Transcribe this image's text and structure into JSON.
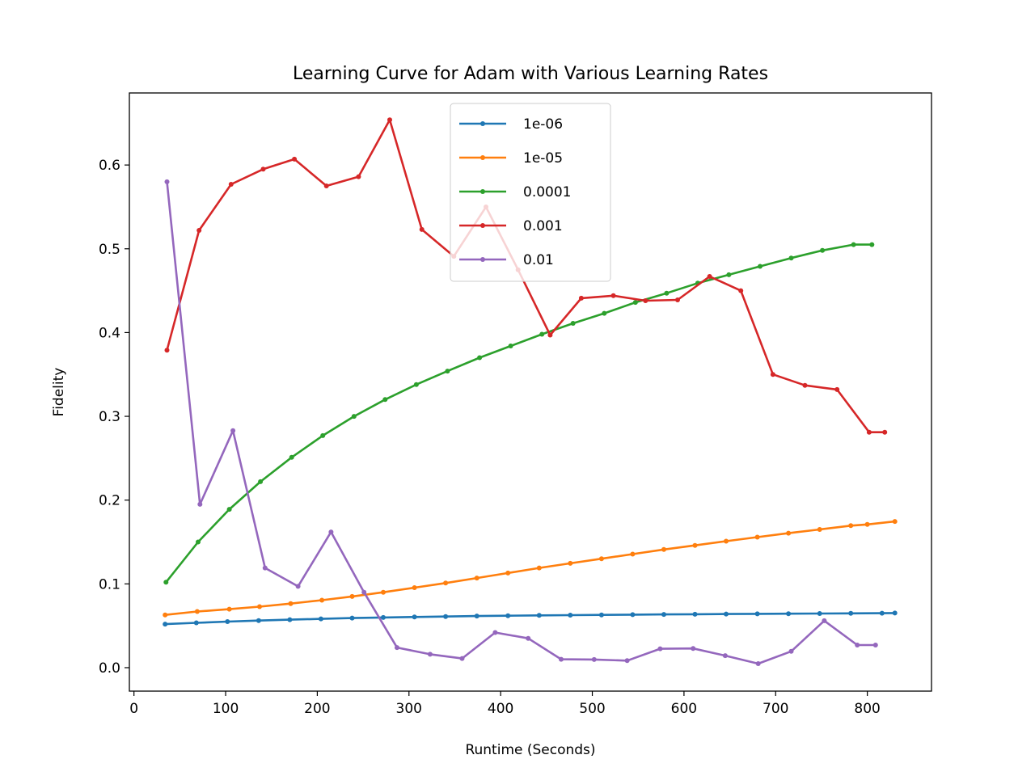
{
  "chart_data": {
    "type": "line",
    "title": "Learning Curve for Adam with Various Learning Rates",
    "xlabel": "Runtime (Seconds)",
    "ylabel": "Fidelity",
    "xlim": [
      -5,
      870
    ],
    "ylim": [
      -0.028,
      0.686
    ],
    "xticks": [
      0,
      100,
      200,
      300,
      400,
      500,
      600,
      700,
      800
    ],
    "yticks": [
      0.0,
      0.1,
      0.2,
      0.3,
      0.4,
      0.5,
      0.6
    ],
    "ytick_labels": [
      "0.0",
      "0.1",
      "0.2",
      "0.3",
      "0.4",
      "0.5",
      "0.6"
    ],
    "grid": false,
    "legend_position": "upper center",
    "series": [
      {
        "name": "1e-06",
        "color": "#1f77b4",
        "x": [
          34,
          68,
          102,
          136,
          170,
          204,
          238,
          272,
          306,
          340,
          374,
          408,
          442,
          476,
          510,
          544,
          578,
          612,
          646,
          680,
          714,
          748,
          782,
          816,
          830
        ],
        "y": [
          0.052,
          0.0535,
          0.055,
          0.0562,
          0.0573,
          0.0583,
          0.0592,
          0.0599,
          0.0605,
          0.0611,
          0.0616,
          0.062,
          0.0624,
          0.0627,
          0.063,
          0.0633,
          0.0636,
          0.0638,
          0.064,
          0.0642,
          0.0644,
          0.0646,
          0.0648,
          0.065,
          0.0652
        ]
      },
      {
        "name": "1e-05",
        "color": "#ff7f0e",
        "x": [
          34,
          69,
          104,
          137,
          171,
          205,
          238,
          272,
          306,
          340,
          374,
          408,
          442,
          476,
          510,
          544,
          578,
          612,
          646,
          680,
          714,
          748,
          782,
          800,
          830
        ],
        "y": [
          0.063,
          0.067,
          0.0698,
          0.0728,
          0.0765,
          0.0805,
          0.085,
          0.09,
          0.0955,
          0.101,
          0.107,
          0.113,
          0.119,
          0.1245,
          0.13,
          0.1355,
          0.141,
          0.146,
          0.151,
          0.1558,
          0.1605,
          0.165,
          0.1695,
          0.171,
          0.1745
        ]
      },
      {
        "name": "0.0001",
        "color": "#2ca02c",
        "x": [
          35,
          70,
          104,
          138,
          172,
          206,
          240,
          274,
          308,
          342,
          377,
          411,
          445,
          479,
          513,
          547,
          581,
          615,
          649,
          683,
          717,
          751,
          785,
          805
        ],
        "y": [
          0.102,
          0.15,
          0.189,
          0.222,
          0.251,
          0.277,
          0.3,
          0.32,
          0.338,
          0.354,
          0.37,
          0.384,
          0.398,
          0.411,
          0.423,
          0.436,
          0.447,
          0.459,
          0.469,
          0.479,
          0.489,
          0.498,
          0.505,
          0.505
        ]
      },
      {
        "name": "0.001",
        "color": "#d62728",
        "x": [
          36,
          71,
          106,
          141,
          175,
          210,
          245,
          279,
          314,
          349,
          384,
          419,
          454,
          488,
          523,
          558,
          593,
          628,
          662,
          697,
          732,
          767,
          802,
          819
        ],
        "y": [
          0.379,
          0.522,
          0.577,
          0.595,
          0.607,
          0.575,
          0.586,
          0.654,
          0.523,
          0.491,
          0.55,
          0.475,
          0.397,
          0.441,
          0.444,
          0.438,
          0.439,
          0.467,
          0.45,
          0.35,
          0.337,
          0.332,
          0.281,
          0.281
        ]
      },
      {
        "name": "0.01",
        "color": "#9467bd",
        "x": [
          36,
          72,
          108,
          143,
          179,
          215,
          251,
          287,
          323,
          358,
          394,
          430,
          466,
          502,
          538,
          574,
          610,
          645,
          681,
          717,
          753,
          789,
          809
        ],
        "y": [
          0.58,
          0.195,
          0.283,
          0.119,
          0.097,
          0.162,
          0.09,
          0.024,
          0.016,
          0.011,
          0.042,
          0.035,
          0.01,
          0.0097,
          0.0084,
          0.0226,
          0.0229,
          0.0144,
          0.0048,
          0.0195,
          0.056,
          0.027,
          0.027
        ]
      }
    ]
  }
}
